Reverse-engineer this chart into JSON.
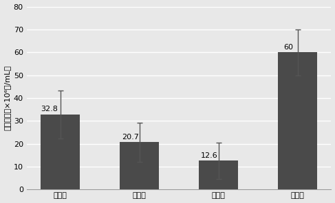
{
  "categories": [
    "郭郑湖",
    "牛巢湖",
    "汤菱湖",
    "官桥湖"
  ],
  "values": [
    32.8,
    20.7,
    12.6,
    60.0
  ],
  "errors": [
    10.5,
    8.5,
    8.0,
    10.0
  ],
  "bar_color": "#4a4a4a",
  "ylabel": "细菌浓度（×10⁶个/mL）",
  "ylim": [
    0,
    80
  ],
  "yticks": [
    0,
    10,
    20,
    30,
    40,
    50,
    60,
    70,
    80
  ],
  "bar_labels": [
    "32.8",
    "20.7",
    "12.6",
    "60"
  ],
  "background_color": "#e8e8e8",
  "plot_bg_color": "#e8e8e8",
  "grid_color": "#ffffff",
  "bar_width": 0.5,
  "label_fontsize": 8,
  "tick_fontsize": 8,
  "ylabel_fontsize": 8
}
